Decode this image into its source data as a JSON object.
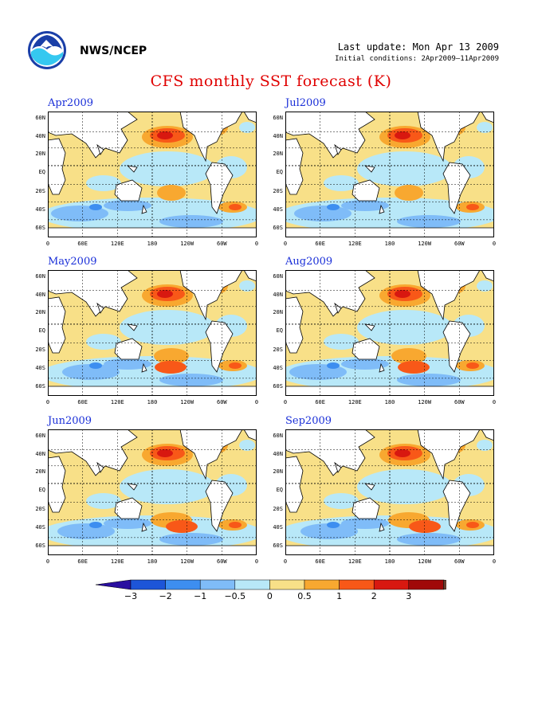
{
  "header": {
    "agency": "NWS/NCEP",
    "last_update": "Last update: Mon Apr 13 2009",
    "initial_conditions": "Initial conditions: 2Apr2009–11Apr2009"
  },
  "title": "CFS monthly SST forecast (K)",
  "lat_labels": [
    "60N",
    "40N",
    "20N",
    "EQ",
    "20S",
    "40S",
    "60S"
  ],
  "lon_labels": [
    "0",
    "60E",
    "120E",
    "180",
    "120W",
    "60W",
    "0"
  ],
  "panels": [
    {
      "month": "Apr2009"
    },
    {
      "month": "Jul2009"
    },
    {
      "month": "May2009"
    },
    {
      "month": "Aug2009"
    },
    {
      "month": "Jun2009"
    },
    {
      "month": "Sep2009"
    }
  ],
  "colorbar": {
    "labels": [
      "−3",
      "−2",
      "−1",
      "−0.5",
      "0",
      "0.5",
      "1",
      "2",
      "3"
    ],
    "colors": [
      "#2a0fa0",
      "#1d55d8",
      "#3d8ef0",
      "#7fbcf8",
      "#b8e8f8",
      "#f8e088",
      "#f8a830",
      "#f85818",
      "#d81810",
      "#a00808",
      "#6a4030"
    ]
  }
}
